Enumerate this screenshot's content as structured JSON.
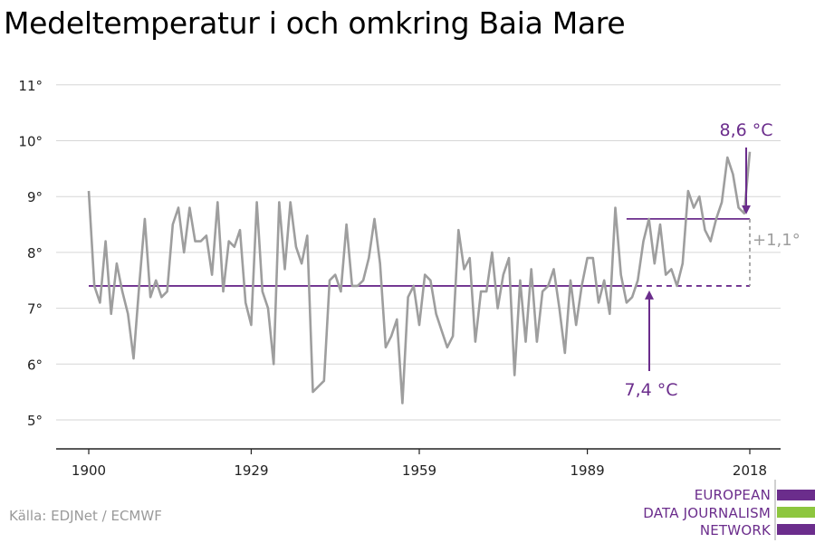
{
  "title": "Medeltemperatur i och omkring Baia Mare",
  "source": "Källa: EDJNet / ECMWF",
  "logo": {
    "line1": "EUROPEAN",
    "line2": "DATA JOURNALISM",
    "line3": "NETWORK",
    "colors": [
      "#6b2d8c",
      "#8dc63f",
      "#6b2d8c"
    ]
  },
  "colors": {
    "series": "#9e9e9e",
    "accent": "#6b2d8c",
    "diff": "#9e9e9e",
    "grid": "#d6d6d6",
    "axis": "#222222"
  },
  "chart_data": {
    "type": "line",
    "title": "Medeltemperatur i och omkring Baia Mare",
    "xlabel": "",
    "ylabel": "",
    "xlim": [
      1900,
      2018
    ],
    "ylim": [
      4.5,
      11.5
    ],
    "y_ticks": [
      5,
      6,
      7,
      8,
      9,
      10,
      11
    ],
    "y_tick_labels": [
      "5°",
      "6°",
      "7°",
      "8°",
      "9°",
      "10°",
      "11°"
    ],
    "x_ticks": [
      1900,
      1929,
      1959,
      1989,
      2018
    ],
    "x_tick_labels": [
      "1900",
      "1929",
      "1959",
      "1989",
      "2018"
    ],
    "grid": true,
    "series": [
      {
        "x": [
          1900,
          1901,
          1902,
          1903,
          1904,
          1905,
          1906,
          1907,
          1908,
          1909,
          1910,
          1911,
          1912,
          1913,
          1914,
          1915,
          1916,
          1917,
          1918,
          1919,
          1920,
          1921,
          1922,
          1923,
          1924,
          1925,
          1926,
          1927,
          1928,
          1929,
          1930,
          1931,
          1932,
          1933,
          1934,
          1935,
          1936,
          1937,
          1938,
          1939,
          1940,
          1941,
          1942,
          1943,
          1944,
          1945,
          1946,
          1947,
          1948,
          1949,
          1950,
          1951,
          1952,
          1953,
          1954,
          1955,
          1956,
          1957,
          1958,
          1959,
          1960,
          1961,
          1962,
          1963,
          1964,
          1965,
          1966,
          1967,
          1968,
          1969,
          1970,
          1971,
          1972,
          1973,
          1974,
          1975,
          1976,
          1977,
          1978,
          1979,
          1980,
          1981,
          1982,
          1983,
          1984,
          1985,
          1986,
          1987,
          1988,
          1989,
          1990,
          1991,
          1992,
          1993,
          1994,
          1995,
          1996,
          1997,
          1998,
          1999,
          2000,
          2001,
          2002,
          2003,
          2004,
          2005,
          2006,
          2007,
          2008,
          2009,
          2010,
          2011,
          2012,
          2013,
          2014,
          2015,
          2016,
          2017,
          2018
        ],
        "values": [
          9.1,
          7.4,
          7.1,
          8.2,
          6.9,
          7.8,
          7.3,
          6.9,
          6.1,
          7.4,
          8.6,
          7.2,
          7.5,
          7.2,
          7.3,
          8.5,
          8.8,
          8.0,
          8.8,
          8.2,
          8.2,
          8.3,
          7.6,
          8.9,
          7.3,
          8.2,
          8.1,
          8.4,
          7.1,
          6.7,
          8.9,
          7.3,
          7.0,
          6.0,
          8.9,
          7.7,
          8.9,
          8.1,
          7.8,
          8.3,
          5.5,
          5.6,
          5.7,
          7.5,
          7.6,
          7.3,
          8.5,
          7.4,
          7.4,
          7.5,
          7.9,
          8.6,
          7.8,
          6.3,
          6.5,
          6.8,
          5.3,
          7.2,
          7.4,
          6.7,
          7.6,
          7.5,
          6.9,
          6.6,
          6.3,
          6.5,
          8.4,
          7.7,
          7.9,
          6.4,
          7.3,
          7.3,
          8.0,
          7.0,
          7.6,
          7.9,
          5.8,
          7.5,
          6.4,
          7.7,
          6.4,
          7.3,
          7.4,
          7.7,
          7.0,
          6.2,
          7.5,
          6.7,
          7.4,
          7.9,
          7.9,
          7.1,
          7.5,
          6.9,
          8.8,
          7.6,
          7.1,
          7.2,
          7.5,
          8.2,
          8.6,
          7.8,
          8.5,
          7.6,
          7.7,
          7.4,
          7.8,
          9.1,
          8.8,
          9.0,
          8.4,
          8.2,
          8.6,
          8.9,
          9.7,
          9.4,
          8.8,
          8.7,
          9.8
        ]
      }
    ],
    "reference_lines": [
      {
        "label": "7,4 °C",
        "value": 7.4,
        "x_solid_end": 1996,
        "x_dashed_end": 2018
      },
      {
        "label": "8,6 °C",
        "value": 8.6,
        "x_start": 1996,
        "x_end": 2018
      }
    ],
    "difference_label": "+1,1°"
  }
}
